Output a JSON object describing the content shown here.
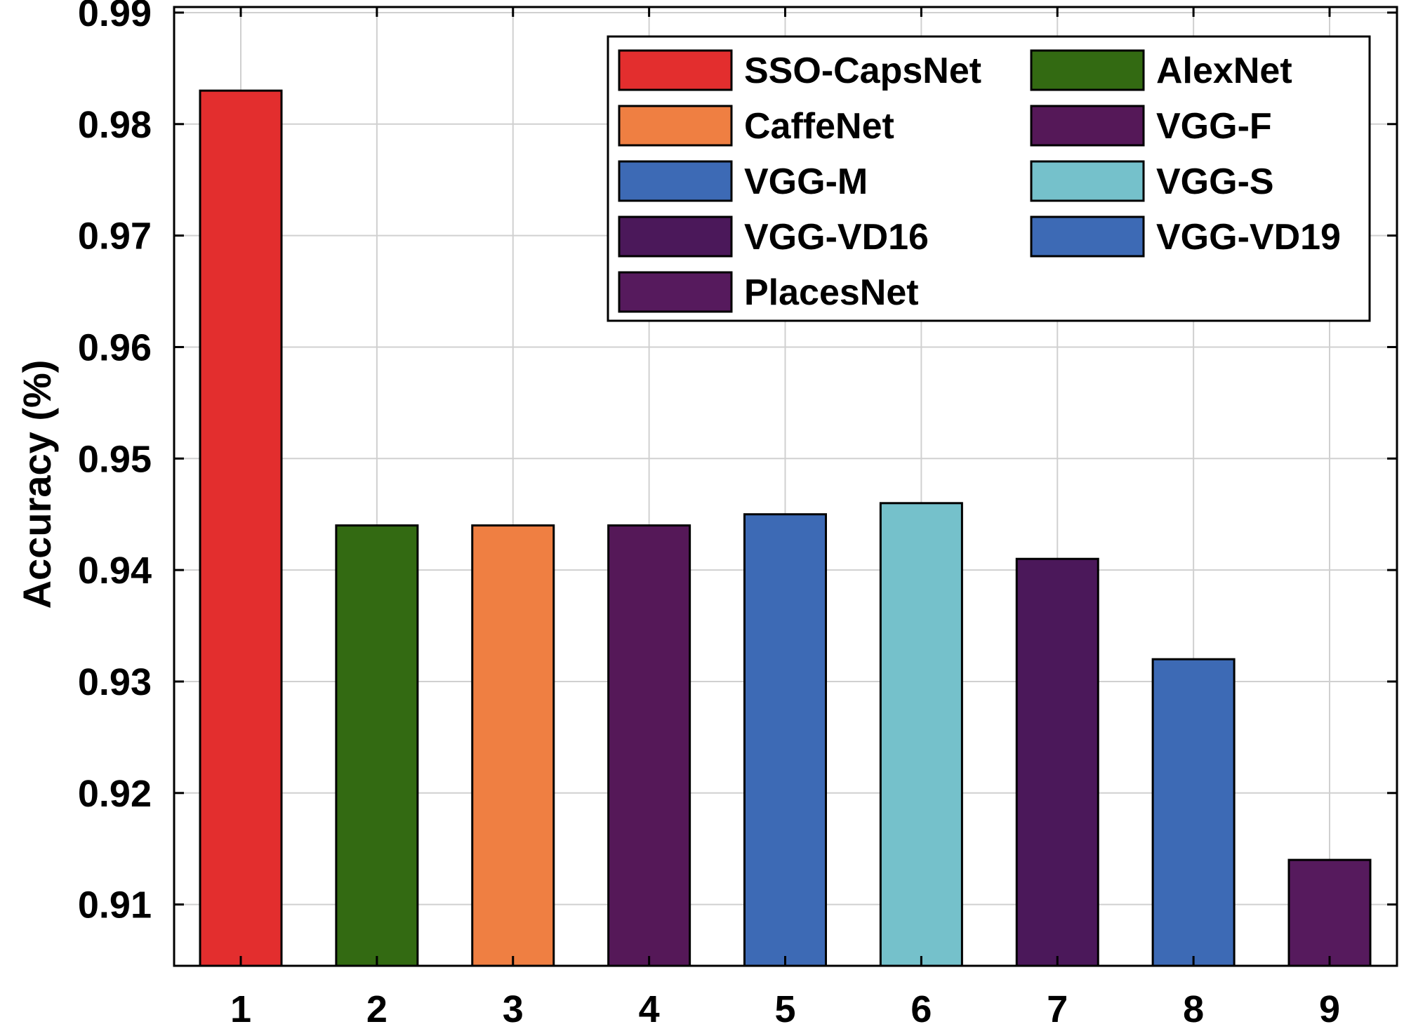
{
  "chart_data": {
    "type": "bar",
    "title": "",
    "xlabel": "",
    "ylabel": "Accuracy (%)",
    "categories": [
      "1",
      "2",
      "3",
      "4",
      "5",
      "6",
      "7",
      "8",
      "9"
    ],
    "values": [
      0.983,
      0.944,
      0.944,
      0.944,
      0.945,
      0.946,
      0.941,
      0.932,
      0.914
    ],
    "series_names": [
      "SSO-CapsNet",
      "AlexNet",
      "CaffeNet",
      "VGG-F",
      "VGG-M",
      "VGG-S",
      "VGG-VD16",
      "VGG-VD19",
      "PlacesNet"
    ],
    "colors": [
      "#e32e2e",
      "#336a12",
      "#ef7f42",
      "#551858",
      "#3d6ab5",
      "#75c1cb",
      "#4b185a",
      "#3d6ab5",
      "#561a5d"
    ],
    "ylim": [
      0.9045,
      0.9905
    ],
    "yticks": [
      "0.91",
      "0.92",
      "0.93",
      "0.94",
      "0.95",
      "0.96",
      "0.97",
      "0.98",
      "0.99"
    ],
    "grid": true,
    "legend": {
      "location": "top-right",
      "columns": 2,
      "order": [
        "SSO-CapsNet",
        "AlexNet",
        "CaffeNet",
        "VGG-F",
        "VGG-M",
        "VGG-S",
        "VGG-VD16",
        "VGG-VD19",
        "PlacesNet"
      ]
    }
  }
}
